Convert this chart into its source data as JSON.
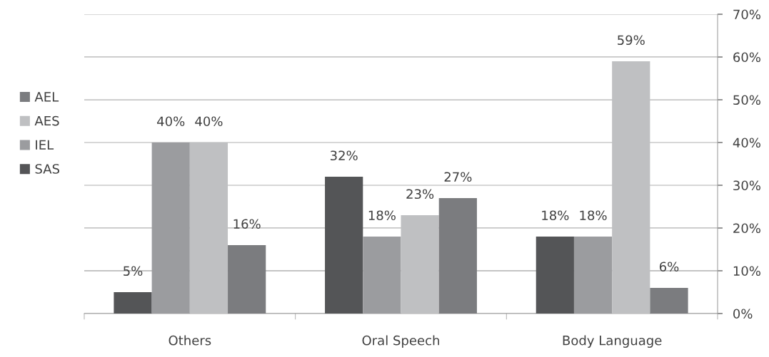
{
  "chart_data": {
    "type": "bar",
    "categories": [
      "Others",
      "Oral Speech",
      "Body Language"
    ],
    "series": [
      {
        "name": "SAS",
        "color": "#545557",
        "values": [
          5,
          32,
          18
        ]
      },
      {
        "name": "IEL",
        "color": "#9b9c9f",
        "values": [
          40,
          18,
          18
        ]
      },
      {
        "name": "AES",
        "color": "#bfc0c2",
        "values": [
          40,
          23,
          59
        ]
      },
      {
        "name": "AEL",
        "color": "#7b7c7f",
        "values": [
          16,
          27,
          6
        ]
      }
    ],
    "ylim": [
      0,
      70
    ],
    "yticks": [
      {
        "value": 0,
        "label": "0%"
      },
      {
        "value": 10,
        "label": "10%"
      },
      {
        "value": 20,
        "label": "20%"
      },
      {
        "value": 30,
        "label": "30%"
      },
      {
        "value": 40,
        "label": "40%"
      },
      {
        "value": 50,
        "label": "50%"
      },
      {
        "value": 60,
        "label": "60%"
      },
      {
        "value": 70,
        "label": "70%"
      }
    ],
    "value_labels": [
      [
        "5%",
        "32%",
        "18%"
      ],
      [
        "40%",
        "18%",
        "18%"
      ],
      [
        "40%",
        "23%",
        "59%"
      ],
      [
        "16%",
        "27%",
        "6%"
      ]
    ],
    "grid": "y",
    "legend": "left"
  }
}
